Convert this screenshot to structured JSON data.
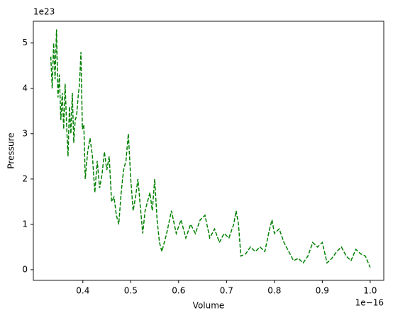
{
  "chart_data": {
    "type": "line",
    "xlabel": "Volume",
    "ylabel": "Pressure",
    "x_offset_text": "1e−16",
    "y_offset_text": "1e23",
    "xlim": [
      0.2966,
      1.0284
    ],
    "ylim": [
      -0.235,
      5.48
    ],
    "xticks": [
      0.4,
      0.5,
      0.6,
      0.7,
      0.8,
      0.9,
      {
        "value": 1,
        "label": "1.0"
      }
    ],
    "yticks": [
      0,
      1,
      2,
      3,
      4,
      5
    ],
    "line_style": "dashed",
    "series": [
      {
        "color": "#008000",
        "x": [
          0.333,
          0.336,
          0.339,
          0.342,
          0.345,
          0.348,
          0.351,
          0.354,
          0.357,
          0.36,
          0.363,
          0.366,
          0.369,
          0.372,
          0.375,
          0.378,
          0.381,
          0.384,
          0.387,
          0.39,
          0.393,
          0.396,
          0.399,
          0.402,
          0.405,
          0.41,
          0.415,
          0.42,
          0.425,
          0.43,
          0.435,
          0.44,
          0.445,
          0.45,
          0.455,
          0.46,
          0.465,
          0.47,
          0.475,
          0.48,
          0.485,
          0.49,
          0.495,
          0.5,
          0.505,
          0.51,
          0.515,
          0.52,
          0.525,
          0.53,
          0.535,
          0.54,
          0.545,
          0.55,
          0.555,
          0.56,
          0.565,
          0.575,
          0.585,
          0.595,
          0.605,
          0.615,
          0.625,
          0.635,
          0.645,
          0.655,
          0.665,
          0.675,
          0.685,
          0.695,
          0.705,
          0.715,
          0.72,
          0.725,
          0.73,
          0.74,
          0.75,
          0.76,
          0.77,
          0.78,
          0.79,
          0.795,
          0.8,
          0.81,
          0.82,
          0.83,
          0.84,
          0.85,
          0.86,
          0.87,
          0.88,
          0.89,
          0.9,
          0.91,
          0.92,
          0.93,
          0.94,
          0.95,
          0.96,
          0.97,
          0.98,
          0.99,
          1.0
        ],
        "values": [
          4.7,
          4.0,
          5.0,
          4.2,
          5.3,
          3.8,
          4.3,
          3.3,
          3.9,
          3.1,
          4.1,
          3.2,
          2.5,
          3.6,
          3.0,
          3.9,
          2.8,
          3.3,
          3.4,
          3.8,
          4.1,
          4.8,
          3.1,
          3.2,
          2.0,
          2.6,
          2.9,
          2.5,
          1.7,
          2.4,
          1.8,
          2.1,
          2.6,
          2.2,
          2.5,
          1.5,
          1.6,
          1.2,
          1.0,
          1.7,
          2.2,
          2.4,
          3.0,
          2.0,
          1.3,
          1.6,
          2.0,
          1.4,
          0.8,
          1.3,
          1.5,
          1.7,
          1.3,
          2.0,
          1.1,
          0.6,
          0.4,
          0.8,
          1.3,
          0.8,
          1.1,
          0.7,
          1.0,
          0.8,
          1.1,
          1.2,
          0.7,
          0.9,
          0.6,
          0.8,
          0.7,
          1.0,
          1.3,
          1.0,
          0.3,
          0.35,
          0.5,
          0.4,
          0.5,
          0.4,
          0.9,
          1.1,
          0.8,
          0.9,
          0.6,
          0.4,
          0.2,
          0.25,
          0.15,
          0.3,
          0.6,
          0.5,
          0.6,
          0.15,
          0.25,
          0.4,
          0.5,
          0.3,
          0.2,
          0.45,
          0.35,
          0.3,
          0.05
        ]
      }
    ]
  }
}
